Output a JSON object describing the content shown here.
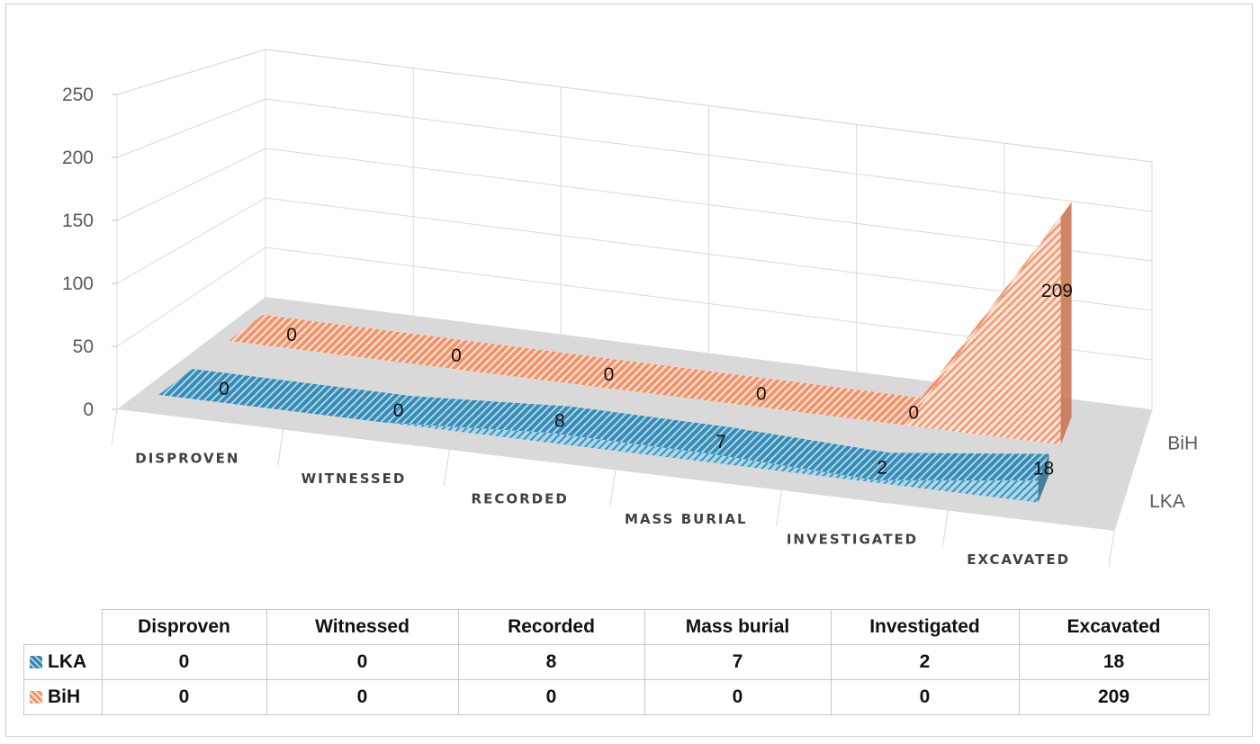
{
  "chart_data": {
    "type": "area",
    "title": "",
    "categories_axis": [
      "DISPROVEN",
      "WITNESSED",
      "RECORDED",
      "MASS BURIAL",
      "INVESTIGATED",
      "EXCAVATED"
    ],
    "series_axis": [
      "LKA",
      "BiH"
    ],
    "yticks": [
      "0",
      "50",
      "100",
      "150",
      "200",
      "250"
    ],
    "ylim": [
      0,
      250
    ],
    "grid": true,
    "legend": "data-table",
    "series": [
      {
        "name": "LKA",
        "values": [
          0,
          0,
          8,
          7,
          2,
          18
        ],
        "color": "#3a8bb3",
        "light": "#a8d8ee"
      },
      {
        "name": "BiH",
        "values": [
          0,
          0,
          0,
          0,
          0,
          209
        ],
        "color": "#f0936a",
        "light": "#ffe3d5"
      }
    ],
    "data_labels": {
      "LKA": [
        "0",
        "0",
        "8",
        "7",
        "2",
        "18"
      ],
      "BiH": [
        "0",
        "0",
        "0",
        "0",
        "0",
        "209"
      ]
    }
  },
  "table": {
    "headers": [
      "Disproven",
      "Witnessed",
      "Recorded",
      "Mass burial",
      "Investigated",
      "Excavated"
    ],
    "rows": [
      {
        "label": "LKA",
        "cells": [
          "0",
          "0",
          "8",
          "7",
          "2",
          "18"
        ]
      },
      {
        "label": "BiH",
        "cells": [
          "0",
          "0",
          "0",
          "0",
          "0",
          "209"
        ]
      }
    ]
  }
}
